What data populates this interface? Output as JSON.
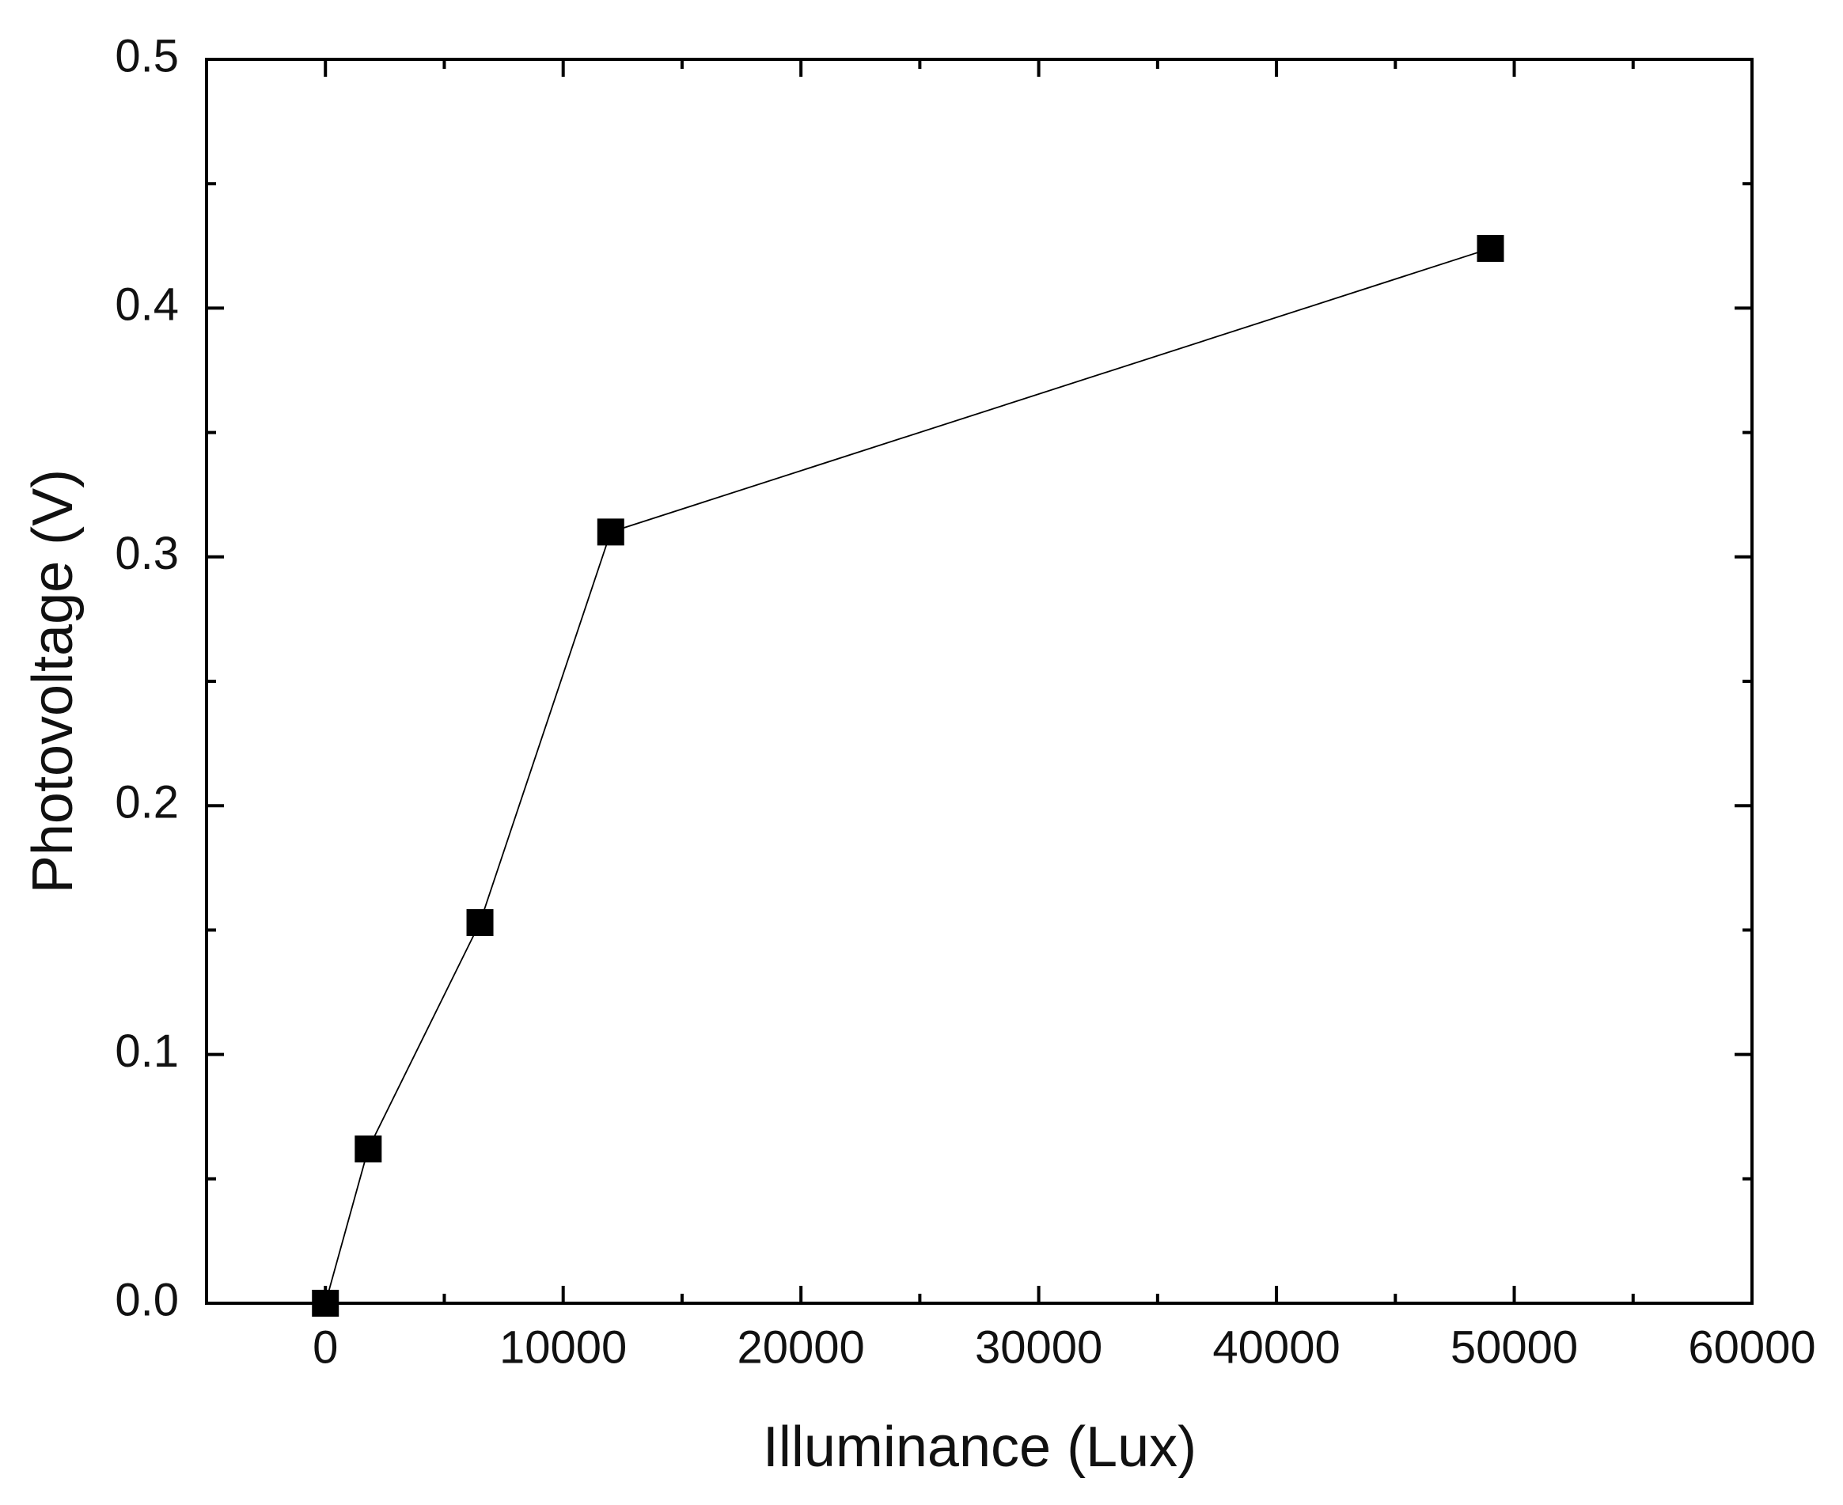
{
  "chart_data": {
    "type": "line",
    "x_label": "Illuminance (Lux)",
    "y_label": "Photovoltage (V)",
    "x": [
      0,
      1800,
      6500,
      12000,
      49000
    ],
    "series": [
      {
        "color": "#000000",
        "values": [
          0,
          0.062,
          0.153,
          0.31,
          0.424
        ]
      }
    ],
    "xlim": [
      -5000,
      60000
    ],
    "xticks": [
      0,
      10000,
      20000,
      30000,
      40000,
      50000,
      60000
    ],
    "ylim": [
      0,
      0.5
    ],
    "yticks": [
      {
        "value": 0,
        "label": "0.0"
      },
      0.1,
      0.2,
      0.3,
      0.4,
      0.5
    ],
    "grid": false
  }
}
